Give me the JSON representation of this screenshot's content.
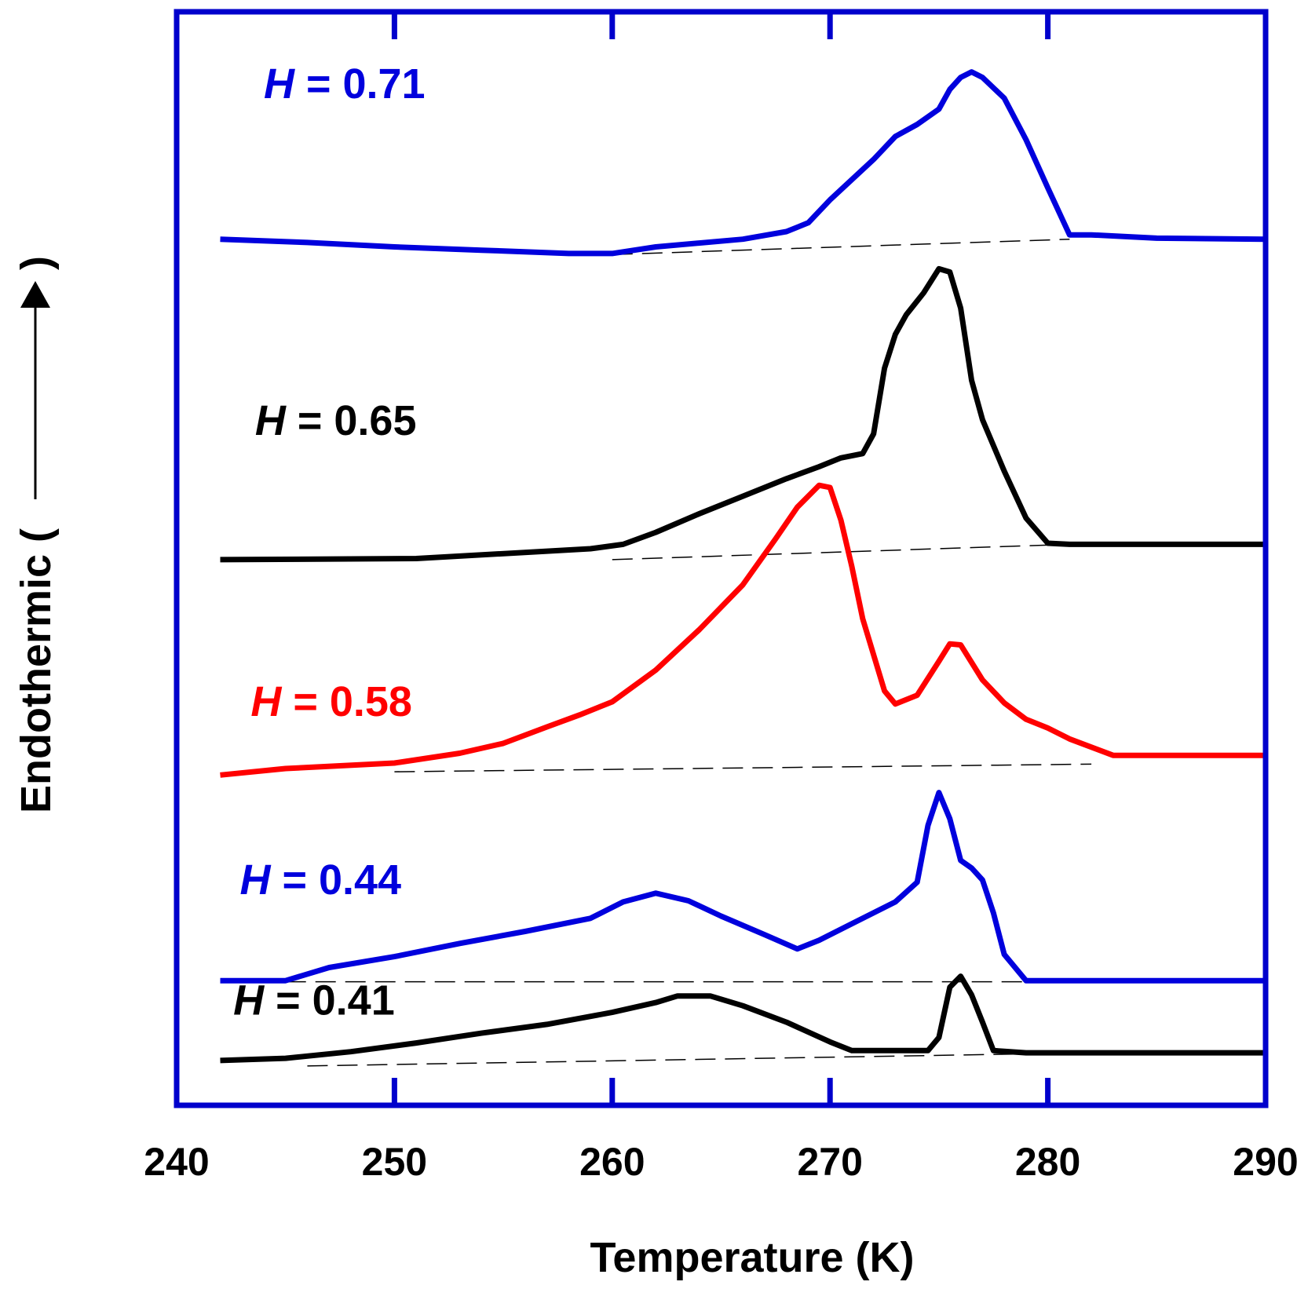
{
  "chart_data": {
    "type": "line",
    "title": "",
    "xlabel": "Temperature (K)",
    "ylabel": "Endothermic (",
    "ylabel_arrow": "arrow-up-icon",
    "xlim": [
      240,
      290
    ],
    "ylim": [
      0,
      100
    ],
    "xticks": [
      240,
      250,
      260,
      270,
      280,
      290
    ],
    "x_tick_labels": [
      "240",
      "250",
      "260",
      "270",
      "280",
      "290"
    ],
    "frame_color": "#0000cc",
    "series": [
      {
        "name": "H = 0.71",
        "label_italic": "H",
        "label_rest": " = 0.71",
        "label_pos": [
          244,
          92.1
        ],
        "color": "#0000dd",
        "x": [
          242,
          246,
          250,
          254,
          258,
          260,
          262,
          266,
          268,
          269,
          270,
          272,
          273,
          274,
          275,
          275.5,
          276,
          276.5,
          277,
          278,
          279,
          280,
          281,
          282,
          285,
          290
        ],
        "y": [
          79.2,
          78.9,
          78.5,
          78.2,
          77.9,
          77.9,
          78.5,
          79.2,
          79.9,
          80.7,
          82.8,
          86.5,
          88.6,
          89.7,
          91.1,
          92.9,
          94.0,
          94.5,
          94.0,
          92.1,
          88.3,
          83.9,
          79.6,
          79.6,
          79.3,
          79.2
        ],
        "baseline": [
          [
            260,
            77.8
          ],
          [
            281,
            79.2
          ]
        ]
      },
      {
        "name": "H = 0.65",
        "label_italic": "H",
        "label_rest": " = 0.65",
        "label_pos": [
          243.6,
          61.3
        ],
        "color": "#000000",
        "x": [
          242,
          251,
          259,
          260.5,
          262,
          264,
          266,
          268,
          269.5,
          270.5,
          271.5,
          272,
          272.5,
          273,
          273.5,
          274.3,
          275,
          275.5,
          276,
          276.5,
          277,
          278,
          279,
          280,
          281,
          285,
          290
        ],
        "y": [
          49.9,
          50.0,
          50.9,
          51.3,
          52.4,
          54.1,
          55.7,
          57.3,
          58.4,
          59.2,
          59.6,
          61.4,
          67.4,
          70.5,
          72.3,
          74.3,
          76.5,
          76.2,
          72.9,
          66.3,
          62.7,
          58.0,
          53.7,
          51.4,
          51.3,
          51.3,
          51.3
        ],
        "baseline": [
          [
            260,
            49.9
          ],
          [
            281,
            51.3
          ]
        ]
      },
      {
        "name": "H = 0.58",
        "label_italic": "H",
        "label_rest": " = 0.58",
        "label_pos": [
          243.4,
          35.6
        ],
        "color": "#ff0000",
        "x": [
          242,
          245,
          250,
          253,
          255,
          257,
          258.5,
          260,
          262,
          264,
          266,
          267.5,
          268.5,
          269.5,
          270,
          270.5,
          271,
          271.5,
          272.5,
          273,
          274,
          275,
          275.5,
          276,
          277,
          278,
          279,
          280,
          281,
          283,
          290
        ],
        "y": [
          30.2,
          30.8,
          31.3,
          32.2,
          33.1,
          34.6,
          35.7,
          36.9,
          39.8,
          43.5,
          47.6,
          51.8,
          54.7,
          56.7,
          56.5,
          53.5,
          49.3,
          44.5,
          37.9,
          36.7,
          37.5,
          40.6,
          42.2,
          42.1,
          38.9,
          36.8,
          35.3,
          34.5,
          33.5,
          32.0,
          32.0
        ],
        "baseline": [
          [
            250,
            30.5
          ],
          [
            282,
            31.2
          ]
        ]
      },
      {
        "name": "H = 0.44",
        "label_italic": "H",
        "label_rest": " = 0.44",
        "label_pos": [
          242.9,
          19.3
        ],
        "color": "#0000dd",
        "x": [
          242,
          245,
          247,
          250,
          253,
          256,
          259,
          260.5,
          262,
          263.5,
          265,
          267,
          268.5,
          269.5,
          271,
          273,
          274,
          274.5,
          275,
          275.5,
          276,
          276.5,
          277,
          277.5,
          278,
          279,
          280,
          290
        ],
        "y": [
          11.4,
          11.4,
          12.6,
          13.6,
          14.8,
          15.9,
          17.1,
          18.6,
          19.4,
          18.7,
          17.3,
          15.6,
          14.3,
          15.1,
          16.6,
          18.6,
          20.4,
          25.6,
          28.6,
          26.2,
          22.4,
          21.7,
          20.6,
          17.6,
          13.8,
          11.4,
          11.4,
          11.4
        ],
        "baseline": [
          [
            245,
            11.3
          ],
          [
            280,
            11.3
          ]
        ]
      },
      {
        "name": "H = 0.41",
        "label_italic": "H",
        "label_rest": " = 0.41",
        "label_pos": [
          242.6,
          8.3
        ],
        "color": "#000000",
        "x": [
          242,
          245,
          248,
          251,
          254,
          257,
          260,
          262,
          263,
          264.5,
          266,
          268,
          270,
          271,
          273,
          274.5,
          275,
          275.5,
          276,
          276.5,
          277,
          277.5,
          279,
          290
        ],
        "y": [
          4.1,
          4.3,
          4.9,
          5.7,
          6.6,
          7.4,
          8.5,
          9.4,
          10.0,
          10.0,
          9.1,
          7.6,
          5.8,
          5.0,
          5.0,
          5.0,
          6.2,
          10.8,
          11.8,
          10.1,
          7.6,
          5.0,
          4.8,
          4.8
        ],
        "baseline": [
          [
            246,
            3.6
          ],
          [
            279,
            4.7
          ]
        ]
      }
    ]
  }
}
